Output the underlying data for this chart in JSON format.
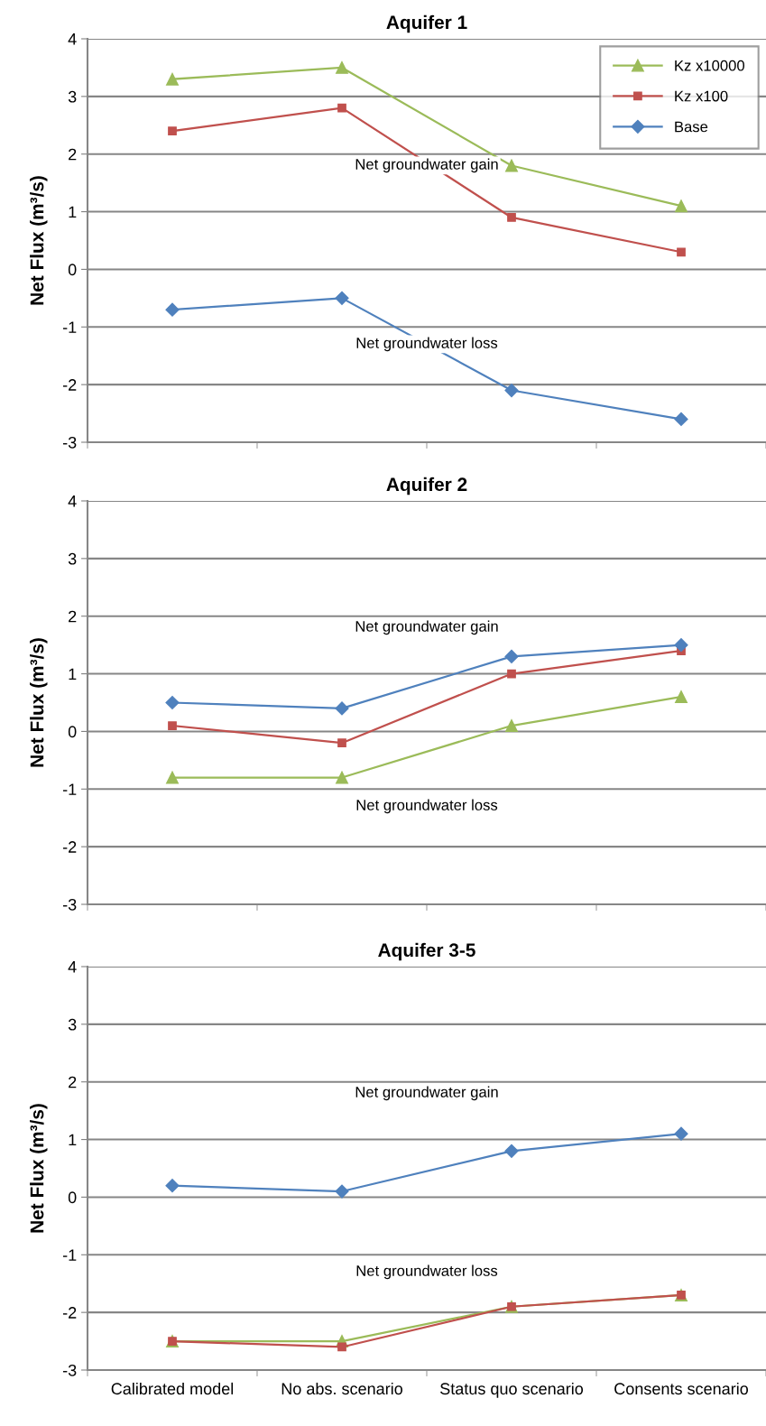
{
  "chart_data": [
    {
      "type": "line",
      "title": "Aquifer 1",
      "ylabel": "Net Flux (m³/s)",
      "categories": [
        null,
        null,
        null,
        null
      ],
      "series": [
        {
          "name": "Kz x10000",
          "color": "#9bbb59",
          "marker": "triangle",
          "values": [
            3.3,
            3.5,
            1.8,
            1.1
          ]
        },
        {
          "name": "Kz x100",
          "color": "#c0504d",
          "marker": "square",
          "values": [
            2.4,
            2.8,
            0.9,
            0.3
          ]
        },
        {
          "name": "Base",
          "color": "#4f81bd",
          "marker": "diamond",
          "values": [
            -0.7,
            -0.5,
            -2.1,
            -2.6
          ]
        }
      ],
      "ylim": [
        -3,
        4
      ],
      "yticks": [
        -3,
        -2,
        -1,
        0,
        1,
        2,
        3,
        4
      ],
      "grid": "y",
      "legend": "top right",
      "tick_labels": "y",
      "annotations": [
        "Net groundwater gain",
        "Net groundwater loss"
      ]
    },
    {
      "type": "line",
      "title": "Aquifer 2",
      "ylabel": "Net Flux (m³/s)",
      "categories": [
        null,
        null,
        null,
        null
      ],
      "series": [
        {
          "color": "#9bbb59",
          "marker": "triangle",
          "values": [
            -0.8,
            -0.8,
            0.1,
            0.6
          ]
        },
        {
          "color": "#c0504d",
          "marker": "square",
          "values": [
            0.1,
            -0.2,
            1.0,
            1.4
          ]
        },
        {
          "color": "#4f81bd",
          "marker": "diamond",
          "values": [
            0.5,
            0.4,
            1.3,
            1.5
          ]
        }
      ],
      "ylim": [
        -3,
        4
      ],
      "yticks": [
        -3,
        -2,
        -1,
        0,
        1,
        2,
        3,
        4
      ],
      "grid": "y",
      "tick_labels": "y",
      "annotations": [
        "Net groundwater gain",
        "Net groundwater loss"
      ]
    },
    {
      "type": "line",
      "title": "Aquifer 3-5",
      "ylabel": "Net Flux (m³/s)",
      "categories": [
        "Calibrated model",
        "No abs. scenario",
        "Status quo scenario",
        "Consents scenario"
      ],
      "series": [
        {
          "color": "#9bbb59",
          "marker": "triangle",
          "values": [
            -2.5,
            -2.5,
            -1.9,
            -1.7
          ]
        },
        {
          "color": "#c0504d",
          "marker": "square",
          "values": [
            -2.5,
            -2.6,
            -1.9,
            -1.7
          ]
        },
        {
          "color": "#4f81bd",
          "marker": "diamond",
          "values": [
            0.2,
            0.1,
            0.8,
            1.1
          ]
        }
      ],
      "ylim": [
        -3,
        4
      ],
      "yticks": [
        -3,
        -2,
        -1,
        0,
        1,
        2,
        3,
        4
      ],
      "grid": "y",
      "annotations": [
        "Net groundwater gain",
        "Net groundwater loss"
      ]
    }
  ]
}
